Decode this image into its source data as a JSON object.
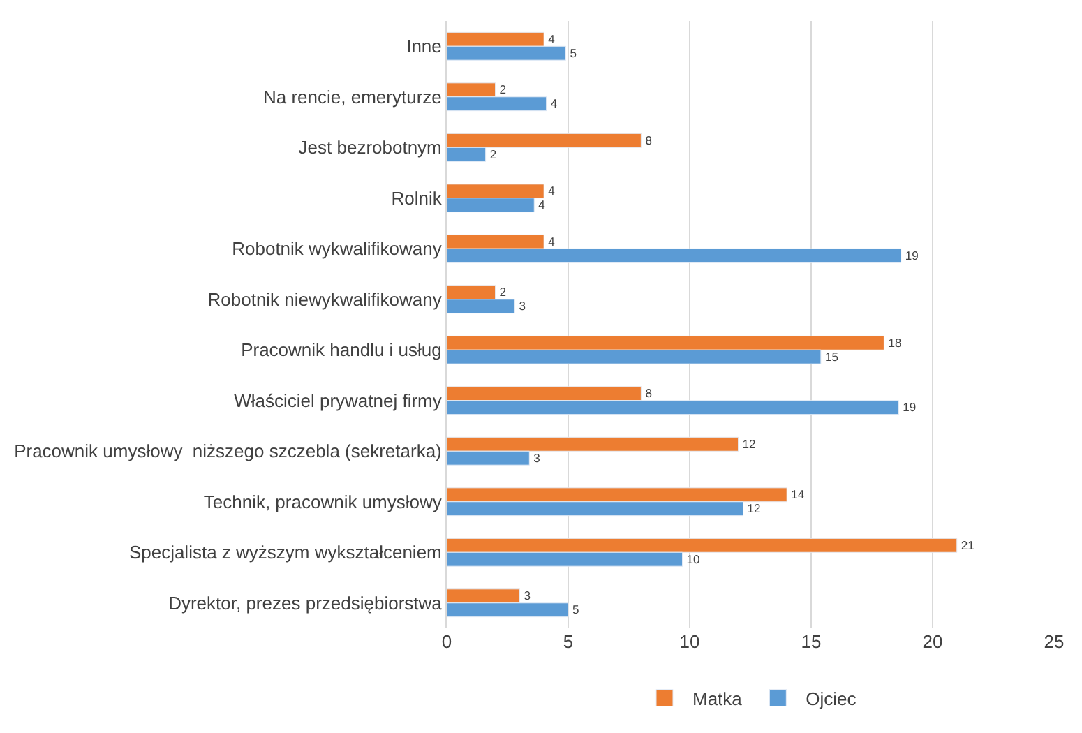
{
  "chart_data": {
    "type": "bar",
    "orientation": "horizontal",
    "categories": [
      "Inne",
      "Na rencie, emeryturze",
      "Jest bezrobotnym",
      "Rolnik",
      "Robotnik wykwalifikowany",
      "Robotnik niewykwalifikowany",
      "Pracownik handlu i usług",
      "Właściciel prywatnej firmy",
      "Pracownik umysłowy  niższego szczebla (sekretarka)",
      "Technik, pracownik umysłowy",
      "Specjalista z wyższym wykształceniem",
      "Dyrektor, prezes przedsiębiorstwa"
    ],
    "series": [
      {
        "name": "Matka",
        "color": "#ed7d31",
        "values": [
          4,
          2,
          8,
          4,
          4,
          2,
          18,
          8,
          12,
          14,
          21,
          3
        ],
        "value_labels": [
          "4",
          "2",
          "8",
          "4",
          "4",
          "2",
          "18",
          "8",
          "12",
          "14",
          "21",
          "3"
        ]
      },
      {
        "name": "Ojciec",
        "color": "#5b9bd5",
        "values": [
          4.9,
          4.1,
          1.6,
          3.6,
          18.7,
          2.8,
          15.4,
          18.6,
          3.4,
          12.2,
          9.7,
          5.0
        ],
        "value_labels": [
          "5",
          "4",
          "2",
          "4",
          "19",
          "3",
          "15",
          "19",
          "3",
          "12",
          "10",
          "5"
        ]
      }
    ],
    "xlim": [
      0,
      25
    ],
    "xticks": [
      0,
      5,
      10,
      15,
      20,
      25
    ],
    "grid": "x",
    "legend": "bottom"
  }
}
